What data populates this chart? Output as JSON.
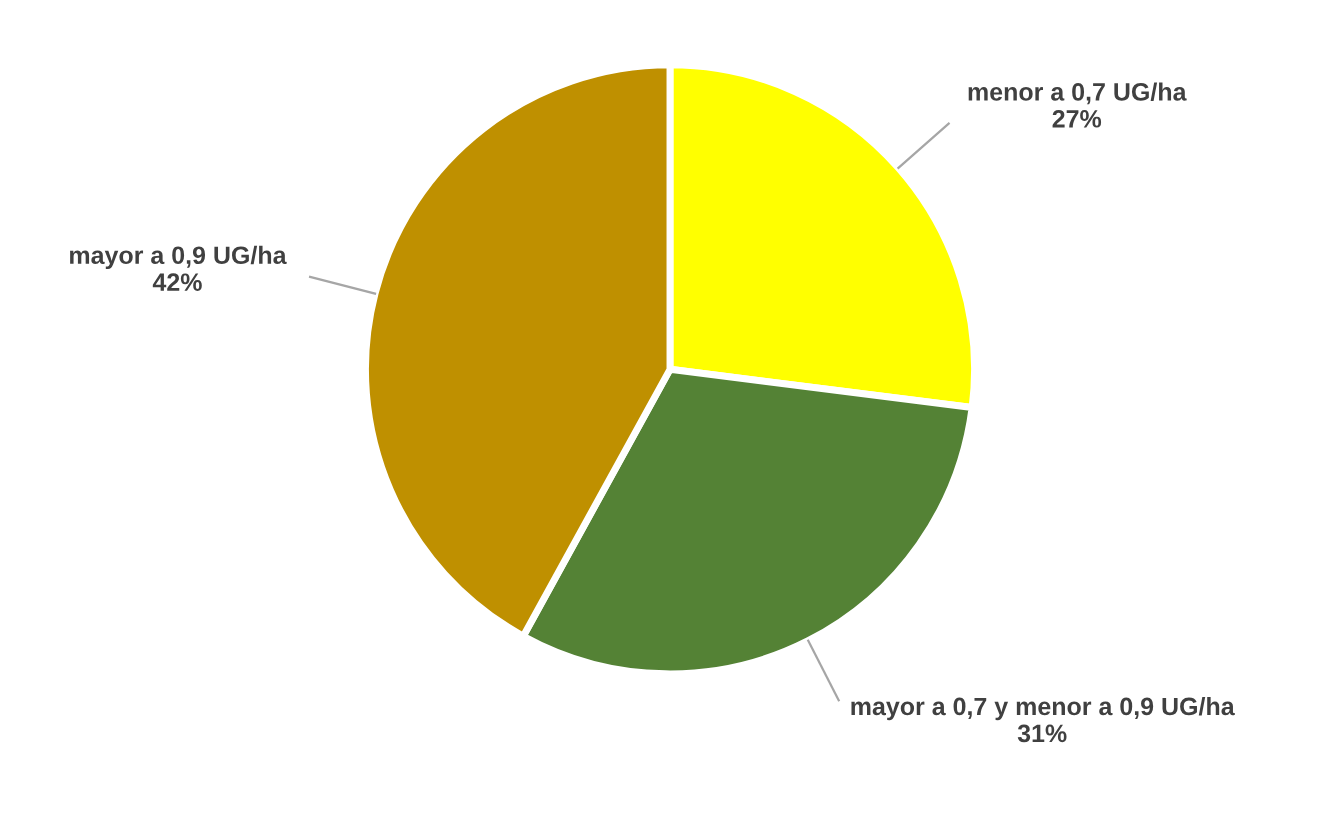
{
  "chart_data": {
    "type": "pie",
    "categories": [
      "menor a 0,7 UG/ha",
      "mayor a 0,7 y menor a 0,9 UG/ha",
      "mayor a 0,9 UG/ha"
    ],
    "values": [
      27,
      31,
      42
    ],
    "value_labels": [
      "27%",
      "31%",
      "42%"
    ],
    "colors": [
      "#ffff00",
      "#548235",
      "#bf9000"
    ],
    "legend": false
  }
}
